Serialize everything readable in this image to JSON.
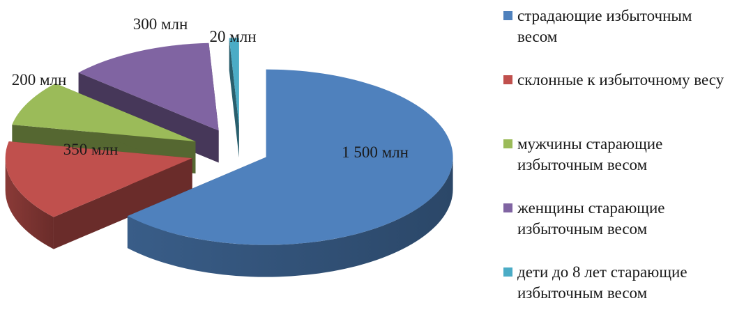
{
  "chart_data": {
    "type": "pie",
    "title": "",
    "labels": [
      "страдающие избыточным весом",
      "склонные к избыточному весу",
      "мужчины старающие избыточным весом",
      "женщины старающие избыточным весом",
      "дети до 8 лет старающие избыточным весом"
    ],
    "values": [
      1500,
      350,
      200,
      300,
      20
    ],
    "data_labels": [
      "1 500 млн",
      "350 млн",
      "200 млн",
      "300 млн",
      "20 млн"
    ],
    "colors": [
      "#4f81bd",
      "#c0504d",
      "#9bbb59",
      "#8064a2",
      "#4bacc6"
    ],
    "legend_position": "right",
    "style": "3d-exploded"
  }
}
